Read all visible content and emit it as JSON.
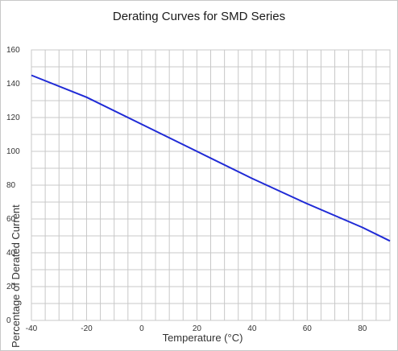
{
  "chart_data": {
    "type": "line",
    "title": "Derating Curves for SMD Series",
    "xlabel": "Temperature (°C)",
    "ylabel": "Percentage of Derated Current",
    "xlim": [
      -40,
      90
    ],
    "ylim": [
      0,
      160
    ],
    "x_ticks": [
      -40,
      -20,
      0,
      20,
      40,
      60,
      80
    ],
    "y_ticks": [
      0,
      20,
      40,
      60,
      80,
      100,
      120,
      140,
      160
    ],
    "x_minor_step": 5,
    "y_minor_step": 10,
    "grid": true,
    "line_color": "#1f2ad6",
    "grid_color": "#c8c8c8",
    "series": [
      {
        "x": [
          -40,
          -20,
          0,
          20,
          40,
          60,
          80,
          90
        ],
        "y": [
          145,
          132,
          116,
          100,
          84,
          69,
          55,
          47
        ]
      }
    ]
  }
}
